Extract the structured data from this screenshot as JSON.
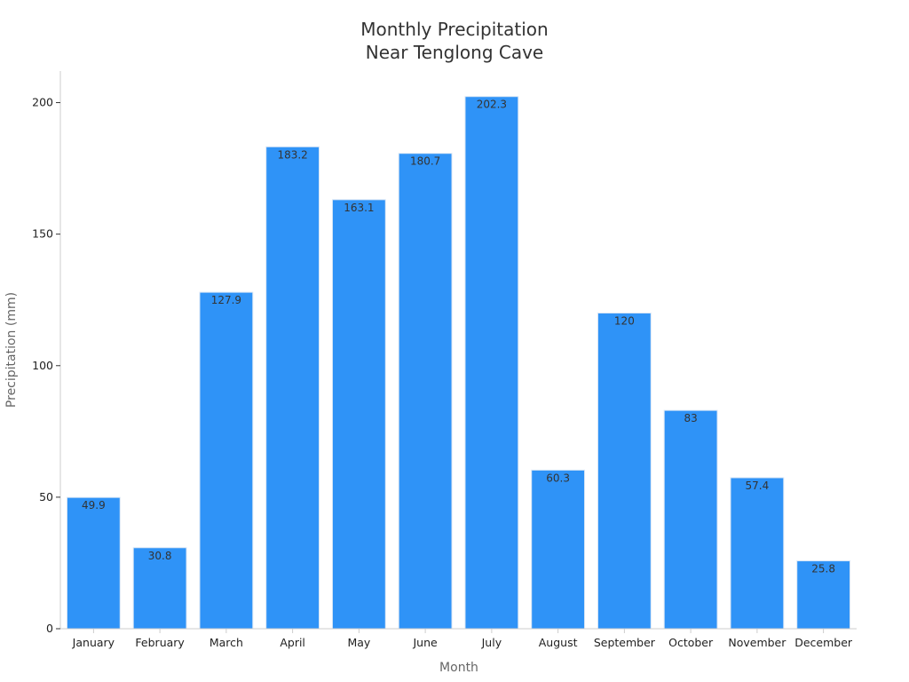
{
  "chart_data": {
    "type": "bar",
    "title_line1": "Monthly Precipitation",
    "title_line2": "Near Tenglong Cave",
    "xlabel": "Month",
    "ylabel": "Precipitation (mm)",
    "categories": [
      "January",
      "February",
      "March",
      "April",
      "May",
      "June",
      "July",
      "August",
      "September",
      "October",
      "November",
      "December"
    ],
    "values": [
      49.9,
      30.8,
      127.9,
      183.2,
      163.1,
      180.7,
      202.3,
      60.3,
      120,
      83,
      57.4,
      25.8
    ],
    "yticks": [
      0,
      50,
      100,
      150,
      200
    ],
    "ylim": [
      0,
      212
    ],
    "grid": false,
    "legend": "none",
    "colors": {
      "bar": "#2f93f7",
      "bar_edge": "#d9e6f5",
      "axis": "#cccccc"
    }
  }
}
